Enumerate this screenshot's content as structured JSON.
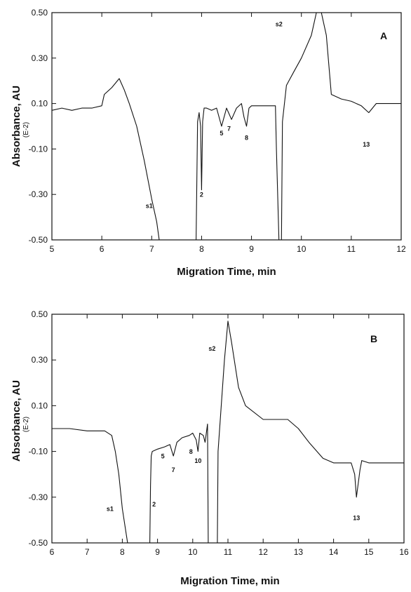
{
  "chart_data": [
    {
      "type": "line",
      "panel_label": "A",
      "xlabel": "Migration Time, min",
      "ylabel": "Absorbance, AU",
      "ylabel_sub": "(E-2)",
      "xlim": [
        5,
        12
      ],
      "ylim": [
        -0.5,
        0.5
      ],
      "x_ticks": [
        "5",
        "6",
        "7",
        "8",
        "9",
        "10",
        "11",
        "12"
      ],
      "y_ticks": [
        "0.50",
        "0.30",
        "0.10",
        "-0.10",
        "-0.30",
        "-0.50"
      ],
      "series": [
        {
          "x": [
            5.0,
            5.2,
            5.4,
            5.6,
            5.8,
            6.0,
            6.05,
            6.2,
            6.35,
            6.45,
            6.55,
            6.7,
            6.85,
            7.0,
            7.1,
            7.15,
            7.89,
            7.92,
            7.95,
            7.98,
            8.0,
            8.02,
            8.05,
            8.1,
            8.2,
            8.3,
            8.4,
            8.5,
            8.6,
            8.7,
            8.8,
            8.85,
            8.9,
            8.95,
            9.0,
            9.2,
            9.4,
            9.48,
            9.5,
            9.55,
            9.6,
            9.62,
            9.7,
            9.75,
            9.85,
            10.0,
            10.2,
            10.3,
            10.4,
            10.5,
            10.6,
            10.8,
            11.0,
            11.2,
            11.35,
            11.5,
            11.8,
            12.0
          ],
          "y": [
            0.07,
            0.08,
            0.07,
            0.08,
            0.08,
            0.09,
            0.14,
            0.17,
            0.21,
            0.16,
            0.1,
            0.0,
            -0.15,
            -0.32,
            -0.42,
            -0.5,
            -0.5,
            0.02,
            0.06,
            0.0,
            -0.28,
            0.02,
            0.08,
            0.08,
            0.07,
            0.08,
            0.0,
            0.08,
            0.03,
            0.08,
            0.1,
            0.04,
            0.0,
            0.08,
            0.09,
            0.09,
            0.09,
            0.09,
            -0.1,
            -0.5,
            -0.5,
            0.02,
            0.18,
            0.2,
            0.24,
            0.3,
            0.4,
            0.5,
            0.5,
            0.4,
            0.14,
            0.12,
            0.11,
            0.09,
            0.06,
            0.1,
            0.1,
            0.1
          ]
        }
      ],
      "annotations": [
        {
          "text": "s1",
          "x": 6.95,
          "y": -0.36
        },
        {
          "text": "2",
          "x": 8.0,
          "y": -0.31
        },
        {
          "text": "5",
          "x": 8.4,
          "y": -0.04
        },
        {
          "text": "7",
          "x": 8.55,
          "y": -0.02
        },
        {
          "text": "8",
          "x": 8.9,
          "y": -0.06
        },
        {
          "text": "s2",
          "x": 9.55,
          "y": 0.44
        },
        {
          "text": "13",
          "x": 11.3,
          "y": -0.09
        }
      ]
    },
    {
      "type": "line",
      "panel_label": "B",
      "xlabel": "Migration Time, min",
      "ylabel": "Absorbance, AU",
      "ylabel_sub": "(E-2)",
      "xlim": [
        6,
        16
      ],
      "ylim": [
        -0.5,
        0.5
      ],
      "x_ticks": [
        "6",
        "7",
        "8",
        "9",
        "10",
        "11",
        "12",
        "13",
        "14",
        "15",
        "16"
      ],
      "y_ticks": [
        "0.50",
        "0.30",
        "0.10",
        "-0.10",
        "-0.30",
        "-0.50"
      ],
      "series": [
        {
          "x": [
            6.0,
            6.5,
            7.0,
            7.5,
            7.7,
            7.8,
            7.9,
            8.0,
            8.1,
            8.15,
            8.78,
            8.8,
            8.82,
            8.85,
            9.0,
            9.2,
            9.35,
            9.45,
            9.55,
            9.7,
            9.9,
            10.0,
            10.1,
            10.15,
            10.2,
            10.3,
            10.35,
            10.42,
            10.44,
            10.5,
            10.7,
            10.72,
            10.9,
            11.0,
            11.1,
            11.3,
            11.5,
            12.0,
            12.5,
            12.7,
            13.0,
            13.3,
            13.7,
            14.0,
            14.5,
            14.6,
            14.65,
            14.75,
            14.8,
            15.0,
            15.5,
            16.0
          ],
          "y": [
            0.0,
            0.0,
            -0.01,
            -0.01,
            -0.03,
            -0.1,
            -0.2,
            -0.35,
            -0.45,
            -0.5,
            -0.5,
            -0.25,
            -0.12,
            -0.1,
            -0.09,
            -0.08,
            -0.07,
            -0.12,
            -0.06,
            -0.04,
            -0.03,
            -0.02,
            -0.05,
            -0.1,
            -0.02,
            -0.03,
            -0.06,
            0.02,
            -0.5,
            -0.5,
            -0.5,
            -0.1,
            0.3,
            0.47,
            0.38,
            0.18,
            0.1,
            0.04,
            0.04,
            0.04,
            0.0,
            -0.06,
            -0.13,
            -0.15,
            -0.15,
            -0.2,
            -0.3,
            -0.18,
            -0.14,
            -0.15,
            -0.15,
            -0.15
          ]
        }
      ],
      "annotations": [
        {
          "text": "s1",
          "x": 7.65,
          "y": -0.36
        },
        {
          "text": "2",
          "x": 8.9,
          "y": -0.34
        },
        {
          "text": "5",
          "x": 9.15,
          "y": -0.13
        },
        {
          "text": "7",
          "x": 9.45,
          "y": -0.19
        },
        {
          "text": "8",
          "x": 9.95,
          "y": -0.11
        },
        {
          "text": "10",
          "x": 10.15,
          "y": -0.15
        },
        {
          "text": "s2",
          "x": 10.55,
          "y": 0.34
        },
        {
          "text": "13",
          "x": 14.65,
          "y": -0.4
        }
      ]
    }
  ]
}
